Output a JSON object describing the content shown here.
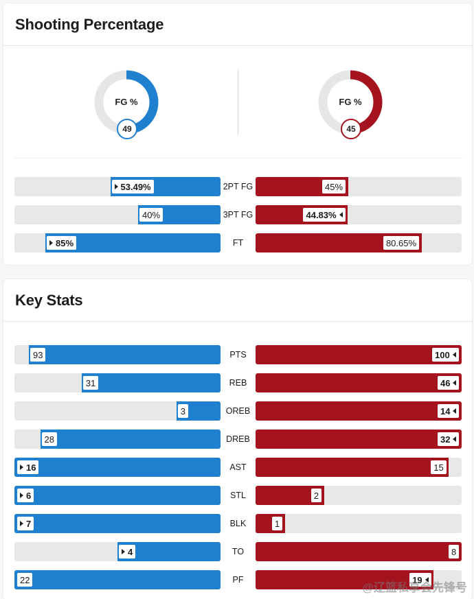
{
  "colors": {
    "home": "#2080d0",
    "away": "#a5131f",
    "track": "#e8e8e8"
  },
  "shooting": {
    "title": "Shooting Percentage",
    "fg": {
      "label": "FG %",
      "home_value": "49",
      "away_value": "45",
      "home_pct": 49,
      "away_pct": 45
    },
    "rows": [
      {
        "label": "2PT FG",
        "home": "53.49%",
        "away": "45%",
        "home_pct": 53.49,
        "away_pct": 45,
        "leader": "home"
      },
      {
        "label": "3PT FG",
        "home": "40%",
        "away": "44.83%",
        "home_pct": 40,
        "away_pct": 44.83,
        "leader": "away"
      },
      {
        "label": "FT",
        "home": "85%",
        "away": "80.65%",
        "home_pct": 85,
        "away_pct": 80.65,
        "leader": "home"
      }
    ]
  },
  "key_stats": {
    "title": "Key Stats",
    "rows": [
      {
        "label": "PTS",
        "home": "93",
        "away": "100",
        "home_pct": 93,
        "away_pct": 100,
        "leader": "away"
      },
      {
        "label": "REB",
        "home": "31",
        "away": "46",
        "home_pct": 67.4,
        "away_pct": 100,
        "leader": "away"
      },
      {
        "label": "OREB",
        "home": "3",
        "away": "14",
        "home_pct": 21.4,
        "away_pct": 100,
        "leader": "away"
      },
      {
        "label": "DREB",
        "home": "28",
        "away": "32",
        "home_pct": 87.5,
        "away_pct": 100,
        "leader": "away"
      },
      {
        "label": "AST",
        "home": "16",
        "away": "15",
        "home_pct": 100,
        "away_pct": 93.75,
        "leader": "home"
      },
      {
        "label": "STL",
        "home": "6",
        "away": "2",
        "home_pct": 100,
        "away_pct": 33.3,
        "leader": "home"
      },
      {
        "label": "BLK",
        "home": "7",
        "away": "1",
        "home_pct": 100,
        "away_pct": 14.3,
        "leader": "home"
      },
      {
        "label": "TO",
        "home": "4",
        "away": "8",
        "home_pct": 50,
        "away_pct": 100,
        "leader": "home"
      },
      {
        "label": "PF",
        "home": "22",
        "away": "19",
        "home_pct": 100,
        "away_pct": 86.4,
        "leader": "away"
      }
    ]
  },
  "watermark": "@辽篮私享会先锋号"
}
